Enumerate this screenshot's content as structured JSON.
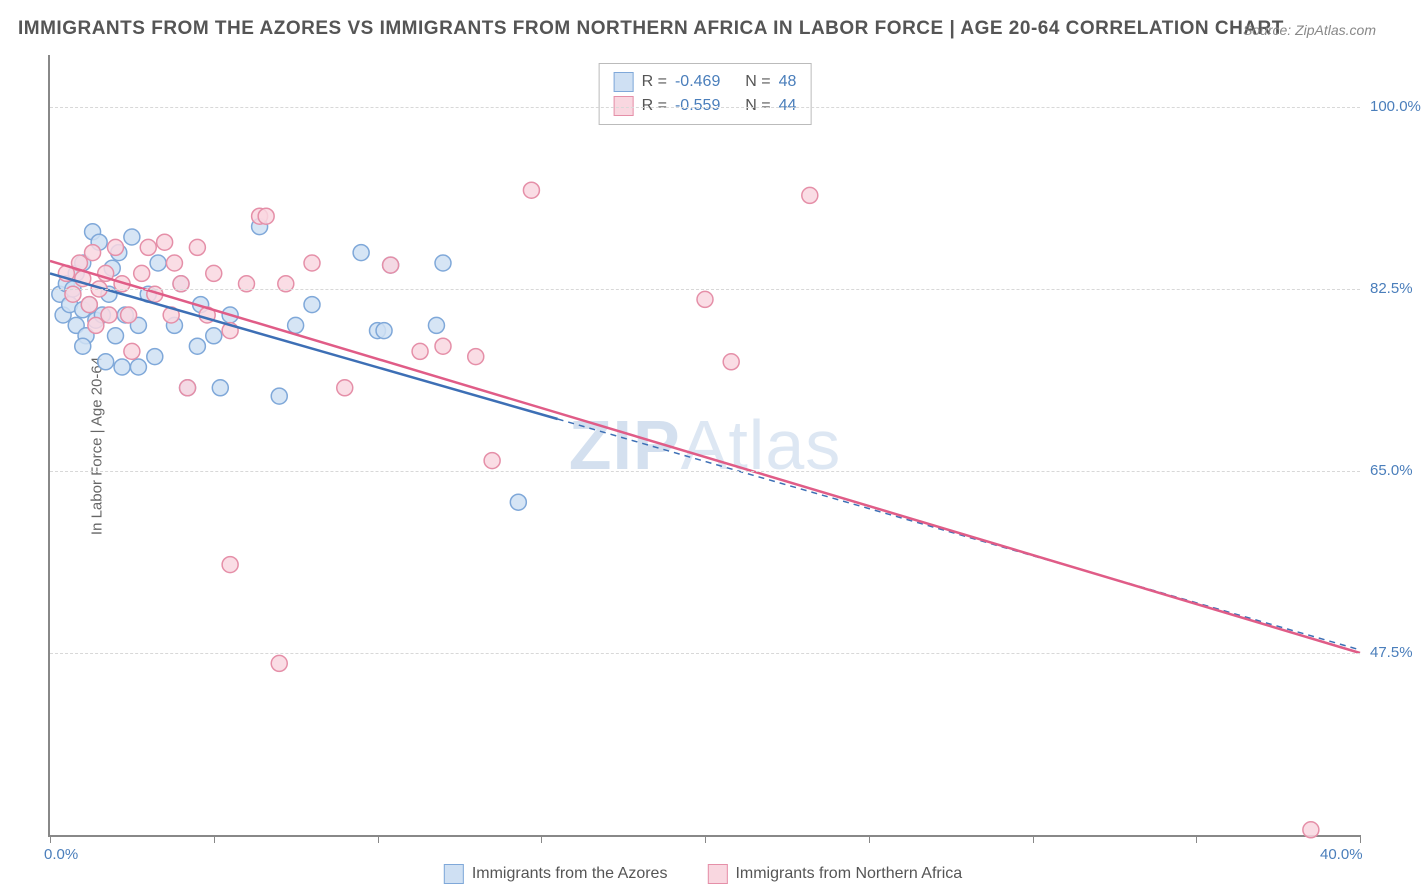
{
  "title": "IMMIGRANTS FROM THE AZORES VS IMMIGRANTS FROM NORTHERN AFRICA IN LABOR FORCE | AGE 20-64 CORRELATION CHART",
  "source": "Source: ZipAtlas.com",
  "y_axis_title": "In Labor Force | Age 20-64",
  "watermark_bold": "ZIP",
  "watermark_light": "Atlas",
  "chart": {
    "type": "scatter",
    "xlim": [
      0,
      40
    ],
    "ylim": [
      30,
      105
    ],
    "x_ticks": [
      0,
      5,
      10,
      15,
      20,
      25,
      30,
      35,
      40
    ],
    "x_tick_labels_shown": {
      "left": "0.0%",
      "right": "40.0%"
    },
    "y_ticks": [
      47.5,
      65.0,
      82.5,
      100.0
    ],
    "y_tick_labels": [
      "47.5%",
      "65.0%",
      "82.5%",
      "100.0%"
    ],
    "grid_color": "#d8d8d8",
    "axis_color": "#888888",
    "label_color": "#4a7ebb",
    "background_color": "#ffffff",
    "marker_radius": 8,
    "marker_stroke_width": 1.5,
    "line_width": 2.5,
    "series": [
      {
        "name": "Immigrants from the Azores",
        "fill": "#cfe0f3",
        "stroke": "#7fa8d9",
        "line_color": "#3d6fb5",
        "r": -0.469,
        "n": 48,
        "trend": {
          "x1": 0,
          "y1": 84,
          "x2": 15.5,
          "y2": 70,
          "x2_dash": 40,
          "y2_dash": 47.8
        },
        "points": [
          [
            0.3,
            82
          ],
          [
            0.4,
            80
          ],
          [
            0.5,
            83
          ],
          [
            0.6,
            81
          ],
          [
            0.7,
            82.5
          ],
          [
            0.8,
            79
          ],
          [
            0.8,
            84
          ],
          [
            1.0,
            80.5
          ],
          [
            1.0,
            85
          ],
          [
            1.1,
            78
          ],
          [
            1.2,
            81
          ],
          [
            1.3,
            88
          ],
          [
            1.4,
            79.5
          ],
          [
            1.5,
            87
          ],
          [
            1.6,
            80
          ],
          [
            1.7,
            75.5
          ],
          [
            1.8,
            82
          ],
          [
            1.9,
            84.5
          ],
          [
            2.0,
            78
          ],
          [
            2.1,
            86
          ],
          [
            2.2,
            75
          ],
          [
            2.3,
            80
          ],
          [
            2.5,
            87.5
          ],
          [
            2.7,
            79
          ],
          [
            2.7,
            75
          ],
          [
            3.0,
            82
          ],
          [
            3.2,
            76
          ],
          [
            3.3,
            85
          ],
          [
            3.8,
            79
          ],
          [
            4.0,
            83
          ],
          [
            4.2,
            73
          ],
          [
            4.5,
            77
          ],
          [
            4.6,
            81
          ],
          [
            5.0,
            78
          ],
          [
            5.2,
            73
          ],
          [
            5.5,
            80
          ],
          [
            6.4,
            88.5
          ],
          [
            7.0,
            72.2
          ],
          [
            7.5,
            79
          ],
          [
            8.0,
            81
          ],
          [
            9.5,
            86
          ],
          [
            10.0,
            78.5
          ],
          [
            10.2,
            78.5
          ],
          [
            10.4,
            84.8
          ],
          [
            11.8,
            79
          ],
          [
            12.0,
            85.0
          ],
          [
            14.3,
            62
          ],
          [
            1.0,
            77.0
          ]
        ]
      },
      {
        "name": "Immigrants from Northern Africa",
        "fill": "#f9d7e0",
        "stroke": "#e58fa8",
        "line_color": "#e05c87",
        "r": -0.559,
        "n": 44,
        "trend": {
          "x1": 0,
          "y1": 85.2,
          "x2": 40,
          "y2": 47.5
        },
        "points": [
          [
            0.5,
            84
          ],
          [
            0.7,
            82
          ],
          [
            0.9,
            85
          ],
          [
            1.0,
            83.5
          ],
          [
            1.2,
            81
          ],
          [
            1.3,
            86
          ],
          [
            1.5,
            82.5
          ],
          [
            1.7,
            84
          ],
          [
            1.8,
            80
          ],
          [
            2.0,
            86.5
          ],
          [
            2.2,
            83
          ],
          [
            2.4,
            80
          ],
          [
            2.5,
            76.5
          ],
          [
            2.8,
            84
          ],
          [
            3.0,
            86.5
          ],
          [
            3.2,
            82
          ],
          [
            3.5,
            87
          ],
          [
            3.7,
            80
          ],
          [
            3.8,
            85
          ],
          [
            4.0,
            83
          ],
          [
            4.2,
            73
          ],
          [
            4.5,
            86.5
          ],
          [
            4.8,
            80
          ],
          [
            5.0,
            84
          ],
          [
            5.5,
            78.5
          ],
          [
            5.5,
            56
          ],
          [
            6.0,
            83
          ],
          [
            6.4,
            89.5
          ],
          [
            6.6,
            89.5
          ],
          [
            7.2,
            83
          ],
          [
            7.0,
            46.5
          ],
          [
            8.0,
            85
          ],
          [
            9.0,
            73
          ],
          [
            10.4,
            84.8
          ],
          [
            11.3,
            76.5
          ],
          [
            12.0,
            77
          ],
          [
            13.0,
            76
          ],
          [
            13.5,
            66
          ],
          [
            14.7,
            92
          ],
          [
            20.0,
            81.5
          ],
          [
            20.8,
            75.5
          ],
          [
            23.2,
            91.5
          ],
          [
            38.5,
            30.5
          ],
          [
            1.4,
            79
          ]
        ]
      }
    ]
  },
  "correlation_legend": {
    "r_label": "R =",
    "n_label": "N ="
  },
  "bottom_legend_labels": [
    "Immigrants from the Azores",
    "Immigrants from Northern Africa"
  ]
}
